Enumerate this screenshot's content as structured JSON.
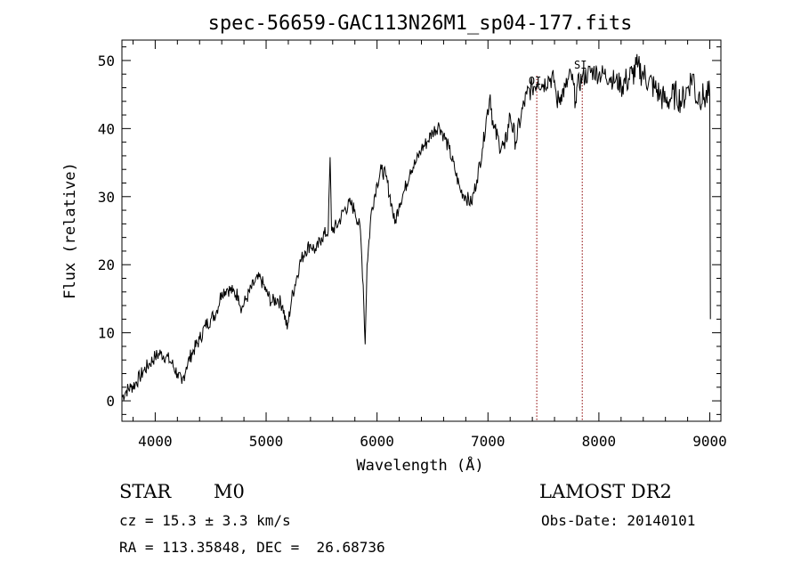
{
  "chart_data": {
    "type": "line",
    "title": "spec-56659-GAC113N26M1_sp04-177.fits",
    "xlabel": "Wavelength (Å)",
    "ylabel": "Flux (relative)",
    "xlim": [
      3700,
      9100
    ],
    "ylim": [
      -3,
      53
    ],
    "xticks": [
      4000,
      5000,
      6000,
      7000,
      8000,
      9000
    ],
    "yticks": [
      0,
      10,
      20,
      30,
      40,
      50
    ],
    "grid": false,
    "series": [
      {
        "points": [
          [
            3700,
            0.5
          ],
          [
            3740,
            1.5
          ],
          [
            3780,
            2.0
          ],
          [
            3820,
            2.5
          ],
          [
            3860,
            3.5
          ],
          [
            3900,
            4.5
          ],
          [
            3950,
            5.5
          ],
          [
            4000,
            6.5
          ],
          [
            4050,
            7.0
          ],
          [
            4100,
            6.5
          ],
          [
            4150,
            5.5
          ],
          [
            4200,
            4.0
          ],
          [
            4240,
            2.5
          ],
          [
            4280,
            5.0
          ],
          [
            4330,
            7.0
          ],
          [
            4400,
            9.0
          ],
          [
            4450,
            11.0
          ],
          [
            4500,
            12.0
          ],
          [
            4550,
            13.0
          ],
          [
            4600,
            16.0
          ],
          [
            4650,
            16.5
          ],
          [
            4700,
            16.0
          ],
          [
            4750,
            15.5
          ],
          [
            4780,
            13.5
          ],
          [
            4820,
            15.0
          ],
          [
            4900,
            17.5
          ],
          [
            4950,
            18.0
          ],
          [
            5000,
            16.0
          ],
          [
            5050,
            14.5
          ],
          [
            5100,
            15.0
          ],
          [
            5150,
            14.0
          ],
          [
            5190,
            10.5
          ],
          [
            5230,
            15.0
          ],
          [
            5300,
            20.0
          ],
          [
            5350,
            22.0
          ],
          [
            5400,
            23.0
          ],
          [
            5450,
            22.0
          ],
          [
            5500,
            24.0
          ],
          [
            5560,
            25.0
          ],
          [
            5577,
            35.8
          ],
          [
            5590,
            25.0
          ],
          [
            5650,
            26.0
          ],
          [
            5700,
            28.0
          ],
          [
            5760,
            29.0
          ],
          [
            5800,
            28.0
          ],
          [
            5850,
            25.0
          ],
          [
            5875,
            17.0
          ],
          [
            5893,
            8.3
          ],
          [
            5910,
            20.0
          ],
          [
            5950,
            28.0
          ],
          [
            6000,
            32.0
          ],
          [
            6040,
            34.0
          ],
          [
            6080,
            33.0
          ],
          [
            6130,
            29.0
          ],
          [
            6160,
            26.0
          ],
          [
            6200,
            29.0
          ],
          [
            6250,
            31.0
          ],
          [
            6300,
            34.0
          ],
          [
            6350,
            35.0
          ],
          [
            6400,
            37.0
          ],
          [
            6450,
            38.0
          ],
          [
            6500,
            39.5
          ],
          [
            6560,
            40.5
          ],
          [
            6600,
            39.0
          ],
          [
            6650,
            37.0
          ],
          [
            6700,
            34.0
          ],
          [
            6750,
            31.0
          ],
          [
            6800,
            30.0
          ],
          [
            6850,
            29.0
          ],
          [
            6900,
            32.5
          ],
          [
            6950,
            37.0
          ],
          [
            6990,
            42.0
          ],
          [
            7020,
            45.0
          ],
          [
            7050,
            40.0
          ],
          [
            7100,
            38.0
          ],
          [
            7150,
            37.0
          ],
          [
            7200,
            42.0
          ],
          [
            7250,
            38.0
          ],
          [
            7300,
            42.0
          ],
          [
            7350,
            45.0
          ],
          [
            7400,
            46.0
          ],
          [
            7450,
            47.0
          ],
          [
            7500,
            46.5
          ],
          [
            7550,
            47.5
          ],
          [
            7600,
            47.0
          ],
          [
            7620,
            44.0
          ],
          [
            7660,
            45.0
          ],
          [
            7700,
            46.0
          ],
          [
            7750,
            48.0
          ],
          [
            7790,
            44.0
          ],
          [
            7800,
            46.0
          ],
          [
            7850,
            47.5
          ],
          [
            7900,
            48.0
          ],
          [
            7950,
            48.5
          ],
          [
            8000,
            48.0
          ],
          [
            8050,
            48.0
          ],
          [
            8100,
            47.5
          ],
          [
            8150,
            47.0
          ],
          [
            8200,
            46.5
          ],
          [
            8250,
            47.0
          ],
          [
            8300,
            48.0
          ],
          [
            8350,
            49.0
          ],
          [
            8400,
            48.0
          ],
          [
            8450,
            47.0
          ],
          [
            8500,
            46.0
          ],
          [
            8550,
            45.0
          ],
          [
            8600,
            44.0
          ],
          [
            8650,
            44.5
          ],
          [
            8700,
            45.0
          ],
          [
            8750,
            44.0
          ],
          [
            8800,
            46.0
          ],
          [
            8850,
            48.0
          ],
          [
            8880,
            44.0
          ],
          [
            8900,
            45.0
          ],
          [
            8950,
            44.5
          ],
          [
            9000,
            45.0
          ],
          [
            9005,
            12.0
          ]
        ]
      }
    ],
    "marker_lines": [
      {
        "x": 7440,
        "label": "OI",
        "color": "#8b0000"
      },
      {
        "x": 7850,
        "label": "SI",
        "color": "#8b0000"
      }
    ]
  },
  "info": {
    "object_type": "STAR",
    "subclass": "M0",
    "survey": "LAMOST DR2",
    "velocity": "cz = 15.3 ± 3.3 km/s",
    "obs_date": "Obs-Date: 20140101",
    "coords": "RA = 113.35848, DEC =  26.68736"
  }
}
